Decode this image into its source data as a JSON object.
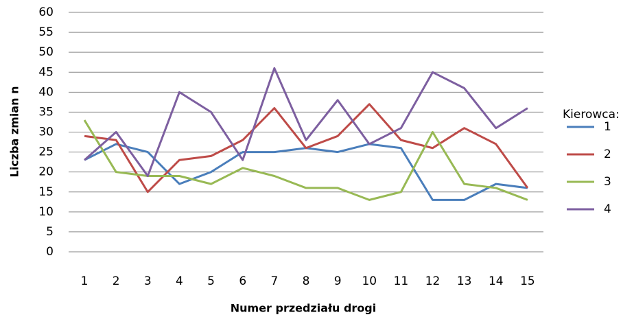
{
  "chart_data": {
    "type": "line",
    "x_label": "Numer przedziału drogi",
    "y_label": "Liczba zmian n",
    "legend_title": "Kierowca:",
    "legend": "right",
    "grid": true,
    "categories": [
      "1",
      "2",
      "3",
      "4",
      "5",
      "6",
      "7",
      "8",
      "9",
      "10",
      "11",
      "12",
      "13",
      "14",
      "15"
    ],
    "ylim": [
      0,
      60
    ],
    "yticks": [
      0,
      5,
      10,
      15,
      20,
      25,
      30,
      35,
      40,
      45,
      50,
      55,
      60
    ],
    "series": [
      {
        "name": "1",
        "color": "#4a7ebb",
        "values": [
          23,
          27,
          25,
          17,
          20,
          25,
          25,
          26,
          25,
          27,
          26,
          13,
          13,
          17,
          16
        ]
      },
      {
        "name": "2",
        "color": "#be4b48",
        "values": [
          29,
          28,
          15,
          23,
          24,
          28,
          36,
          26,
          29,
          37,
          28,
          26,
          31,
          27,
          16
        ]
      },
      {
        "name": "3",
        "color": "#98b954",
        "values": [
          33,
          20,
          19,
          19,
          17,
          21,
          19,
          16,
          16,
          13,
          15,
          30,
          17,
          16,
          13
        ]
      },
      {
        "name": "4",
        "color": "#7d5fa0",
        "values": [
          23,
          30,
          19,
          40,
          35,
          23,
          46,
          28,
          38,
          27,
          31,
          45,
          41,
          31,
          36
        ]
      }
    ]
  }
}
